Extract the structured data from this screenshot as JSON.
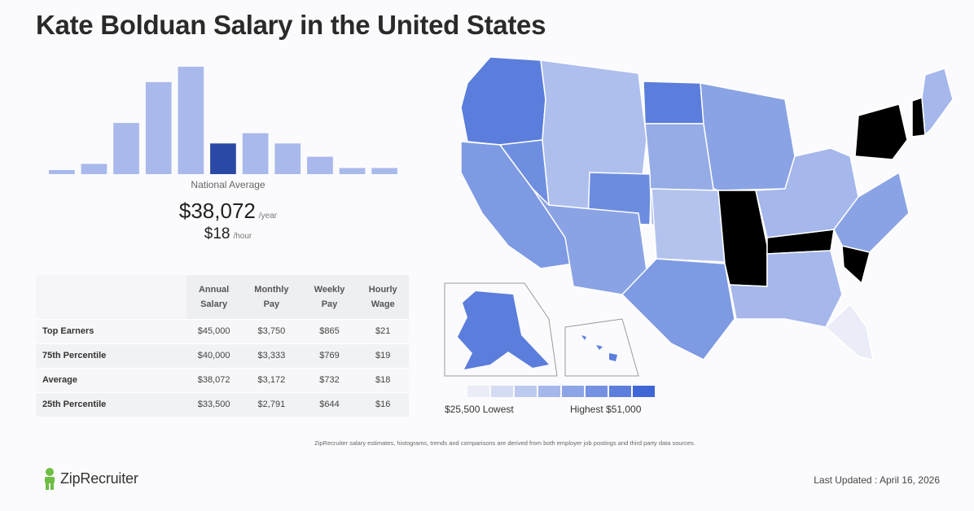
{
  "title": "Kate Bolduan Salary in the United States",
  "chart_data": {
    "type": "bar",
    "title": "",
    "xlabel": "",
    "ylabel": "",
    "values": [
      4,
      10,
      50,
      90,
      105,
      30,
      40,
      30,
      17,
      6,
      6
    ],
    "highlight_index": 5,
    "grid": false,
    "colors": {
      "bar": "#a9b9eb",
      "highlight": "#2a48a5"
    }
  },
  "summary": {
    "national_average_label": "National Average",
    "yearly_value": "$38,072",
    "yearly_unit": "/year",
    "hourly_value": "$18",
    "hourly_unit": "/hour"
  },
  "table": {
    "headers": [
      [
        "Annual",
        "Salary"
      ],
      [
        "Monthly",
        "Pay"
      ],
      [
        "Weekly",
        "Pay"
      ],
      [
        "Hourly",
        "Wage"
      ]
    ],
    "rows": [
      {
        "label": "Top Earners",
        "cells": [
          "$45,000",
          "$3,750",
          "$865",
          "$21"
        ]
      },
      {
        "label": "75th Percentile",
        "cells": [
          "$40,000",
          "$3,333",
          "$769",
          "$19"
        ]
      },
      {
        "label": "Average",
        "cells": [
          "$38,072",
          "$3,172",
          "$732",
          "$18"
        ]
      },
      {
        "label": "25th Percentile",
        "cells": [
          "$33,500",
          "$2,791",
          "$644",
          "$16"
        ]
      }
    ]
  },
  "map_legend": {
    "low_label": "$25,500 Lowest",
    "high_label": "Highest $51,000",
    "colors": [
      "#eaedf7",
      "#d4dcf4",
      "#bccaf0",
      "#a5b7eb",
      "#8da4e6",
      "#7591e1",
      "#5d7edc",
      "#3f66d6"
    ],
    "no_data_color": "#000000"
  },
  "disclaimer": "ZipRecruiter salary estimates, histograms, trends and comparisons are derived from both employer job postings and third party data sources.",
  "brand": {
    "name": "ZipRecruiter",
    "color": "#6fbd44"
  },
  "last_updated": "Last Updated : April 16, 2026"
}
